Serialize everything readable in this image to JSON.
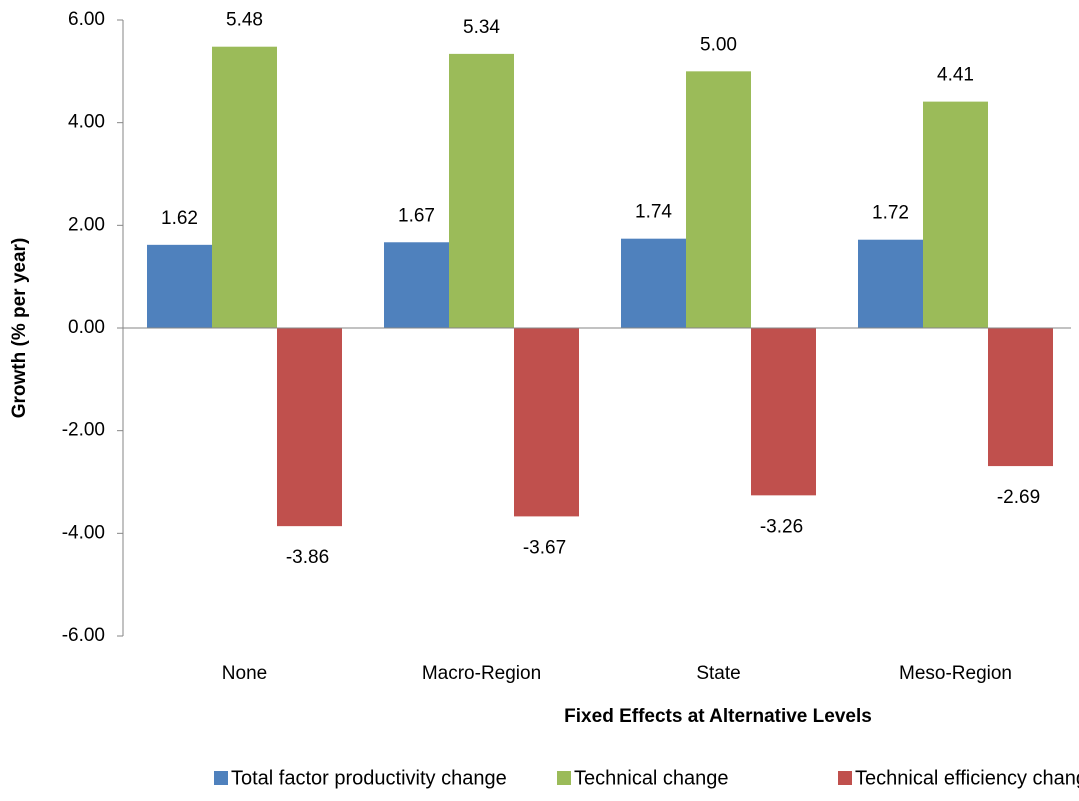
{
  "chart_data": {
    "type": "bar",
    "x_label": "Fixed Effects at Alternative Levels",
    "y_label": "Growth (% per year)",
    "categories": [
      "None",
      "Macro-Region",
      "State",
      "Meso-Region"
    ],
    "series": [
      {
        "name": "Total factor productivity change",
        "color": "#4f81bd",
        "values": [
          1.62,
          1.67,
          1.74,
          1.72
        ],
        "value_labels": [
          "1.62",
          "1.67",
          "1.74",
          "1.72"
        ]
      },
      {
        "name": "Technical change",
        "color": "#9bbb59",
        "values": [
          5.48,
          5.34,
          5.0,
          4.41
        ],
        "value_labels": [
          "5.48",
          "5.34",
          "5.00",
          "4.41"
        ]
      },
      {
        "name": "Technical efficiency change",
        "color": "#c0504d",
        "values": [
          -3.86,
          -3.67,
          -3.26,
          -2.69
        ],
        "value_labels": [
          "-3.86",
          "-3.67",
          "-3.26",
          "-2.69"
        ]
      }
    ],
    "ylim": [
      -6,
      6
    ],
    "yticks": [
      {
        "value": -6,
        "label": "-6.00"
      },
      {
        "value": -4,
        "label": "-4.00"
      },
      {
        "value": -2,
        "label": "-2.00"
      },
      {
        "value": 0,
        "label": "0.00"
      },
      {
        "value": 2,
        "label": "2.00"
      },
      {
        "value": 4,
        "label": "4.00"
      },
      {
        "value": 6,
        "label": "6.00"
      }
    ],
    "grid": false,
    "legend": "bottom"
  }
}
